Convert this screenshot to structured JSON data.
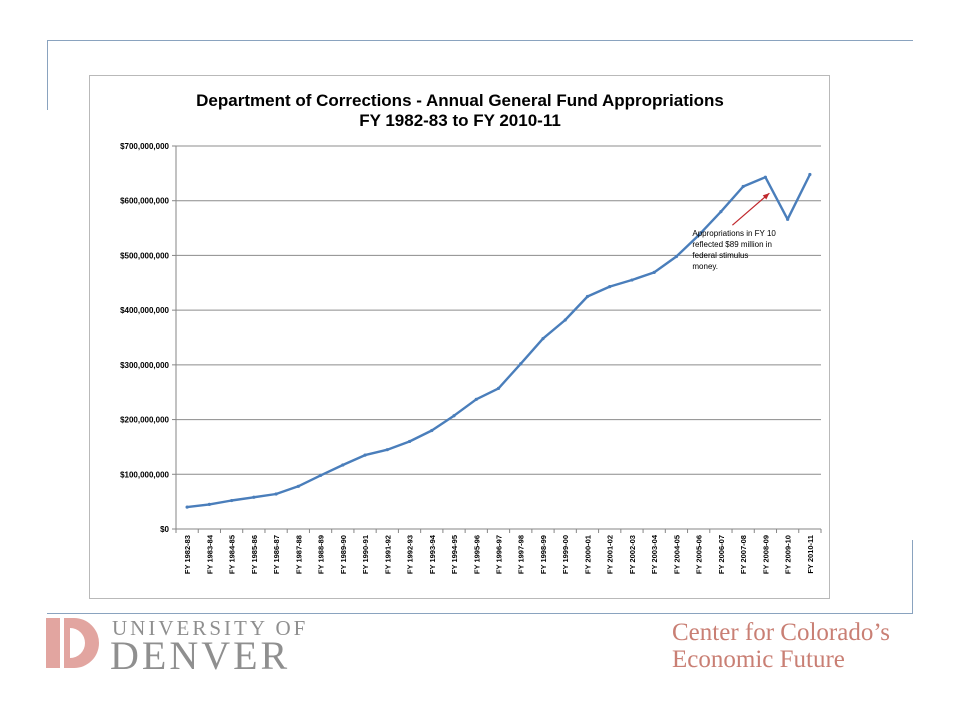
{
  "chart_data": {
    "type": "line",
    "title": "Department of Corrections - Annual General Fund Appropriations",
    "subtitle": "FY 1982-83 to FY 2010-11",
    "xlabel": "",
    "ylabel": "",
    "ylim": [
      0,
      700000000
    ],
    "ytick_labels": [
      "$0",
      "$100,000,000",
      "$200,000,000",
      "$300,000,000",
      "$400,000,000",
      "$500,000,000",
      "$600,000,000",
      "$700,000,000"
    ],
    "grid": true,
    "line_color": "#4a7ebb",
    "categories": [
      "FY 1982-83",
      "FY 1983-84",
      "FY 1984-85",
      "FY 1985-86",
      "FY 1986-87",
      "FY 1987-88",
      "FY 1988-89",
      "FY 1989-90",
      "FY 1990-91",
      "FY 1991-92",
      "FY 1992-93",
      "FY 1993-94",
      "FY 1994-95",
      "FY 1995-96",
      "FY 1996-97",
      "FY 1997-98",
      "FY 1998-99",
      "FY 1999-00",
      "FY 2000-01",
      "FY 2001-02",
      "FY 2002-03",
      "FY 2003-04",
      "FY 2004-05",
      "FY 2005-06",
      "FY 2006-07",
      "FY 2007-08",
      "FY 2008-09",
      "FY 2009-10",
      "FY 2010-11"
    ],
    "values": [
      40000000,
      45000000,
      52000000,
      58000000,
      64000000,
      78000000,
      98000000,
      117000000,
      135000000,
      145000000,
      160000000,
      180000000,
      207000000,
      237000000,
      257000000,
      302000000,
      348000000,
      382000000,
      425000000,
      443000000,
      455000000,
      469000000,
      498000000,
      537000000,
      580000000,
      626000000,
      643000000,
      566000000,
      648000000
    ],
    "annotation": {
      "lines": [
        "Appropriations in FY 10",
        "reflected $89 million in",
        "federal stimulus",
        "money."
      ],
      "arrow_color": "#c0282d",
      "target_category": "FY 2008-09"
    }
  },
  "logos": {
    "du_top": "UNIVERSITY OF",
    "du_bottom": "DENVER",
    "ccef_line1": "Center for Colorado’s",
    "ccef_line2": "Economic Future",
    "du_color": "#8f8f8f",
    "ccef_color": "#c97f74"
  }
}
